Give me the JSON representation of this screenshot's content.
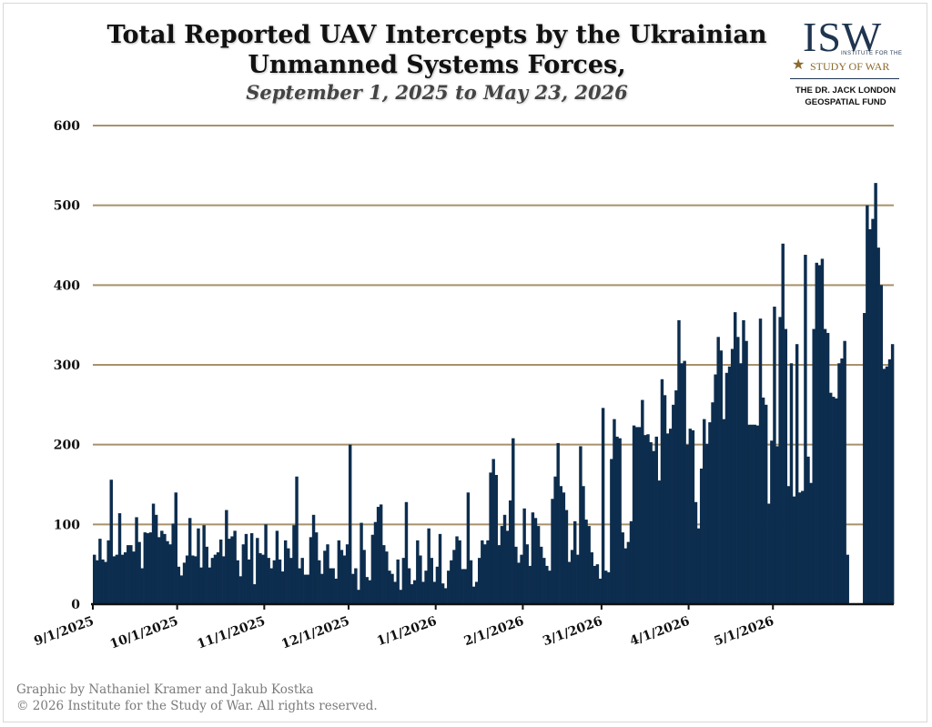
{
  "header": {
    "title_line1": "Total Reported UAV Intercepts by the Ukrainian",
    "title_line2": "Unmanned Systems Forces,",
    "subtitle": "September 1, 2025 to May 23, 2026"
  },
  "logo": {
    "letters": "ISW",
    "small_tag": "INSTITUTE FOR THE",
    "tag": "STUDY OF WAR",
    "fund_line1": "THE DR. JACK LONDON",
    "fund_line2": "GEOSPATIAL FUND"
  },
  "footer": {
    "credit_line1": "Graphic by Nathaniel Kramer and Jakub Kostka",
    "credit_line2": "© 2026 Institute for the Study of War. All rights reserved."
  },
  "colors": {
    "bar": "#0d2d4e",
    "grid": "#a8916b",
    "axis": "#111111"
  },
  "chart_data": {
    "type": "bar",
    "title": "Total Reported UAV Intercepts by the Ukrainian Unmanned Systems Forces,",
    "subtitle": "September 1, 2025 to May 23, 2026",
    "xlabel": "",
    "ylabel": "",
    "ylim": [
      0,
      600
    ],
    "yticks": [
      0,
      100,
      200,
      300,
      400,
      500,
      600
    ],
    "grid": true,
    "x_start": "9/1/2025",
    "x_end": "5/23/2026",
    "xtick_labels": [
      "9/1/2025",
      "10/1/2025",
      "11/1/2025",
      "12/1/2025",
      "1/1/2026",
      "2/1/2026",
      "3/1/2026",
      "4/1/2026",
      "5/1/2026"
    ],
    "xtick_days": [
      0,
      30,
      61,
      91,
      122,
      153,
      181,
      212,
      242
    ],
    "values": [
      62,
      55,
      82,
      56,
      53,
      80,
      156,
      60,
      62,
      114,
      62,
      65,
      74,
      74,
      66,
      109,
      78,
      45,
      90,
      89,
      90,
      126,
      112,
      84,
      92,
      88,
      79,
      75,
      101,
      140,
      47,
      36,
      52,
      61,
      108,
      61,
      60,
      95,
      46,
      99,
      72,
      46,
      58,
      62,
      65,
      81,
      60,
      118,
      82,
      85,
      92,
      55,
      35,
      75,
      88,
      56,
      89,
      25,
      83,
      64,
      62,
      100,
      58,
      45,
      55,
      92,
      56,
      41,
      80,
      70,
      58,
      99,
      160,
      45,
      58,
      37,
      37,
      84,
      112,
      90,
      55,
      38,
      67,
      75,
      45,
      45,
      32,
      80,
      68,
      61,
      75,
      200,
      38,
      45,
      18,
      102,
      68,
      34,
      30,
      87,
      103,
      122,
      125,
      74,
      66,
      42,
      38,
      28,
      56,
      18,
      58,
      128,
      45,
      25,
      30,
      80,
      61,
      28,
      42,
      95,
      58,
      28,
      47,
      88,
      26,
      20,
      42,
      55,
      68,
      85,
      80,
      44,
      44,
      140,
      55,
      22,
      28,
      58,
      80,
      75,
      80,
      165,
      182,
      162,
      74,
      98,
      112,
      92,
      130,
      208,
      72,
      52,
      62,
      120,
      75,
      48,
      115,
      108,
      98,
      72,
      58,
      48,
      42,
      132,
      160,
      202,
      148,
      140,
      118,
      53,
      68,
      104,
      62,
      198,
      148,
      106,
      98,
      65,
      48,
      50,
      32,
      246,
      42,
      40,
      182,
      232,
      210,
      208,
      90,
      70,
      78,
      104,
      224,
      222,
      222,
      256,
      212,
      213,
      203,
      192,
      210,
      155,
      282,
      262,
      214,
      220,
      250,
      268,
      356,
      302,
      305,
      200,
      220,
      218,
      128,
      95,
      170,
      232,
      201,
      228,
      253,
      288,
      335,
      318,
      232,
      290,
      298,
      320,
      366,
      335,
      302,
      356,
      330,
      225,
      225,
      225,
      224,
      358,
      259,
      250,
      126,
      205,
      373,
      198,
      360,
      452,
      345,
      148,
      302,
      135,
      326,
      140,
      142,
      438,
      185,
      152,
      345,
      428,
      425,
      433,
      345,
      340,
      265,
      260,
      258,
      302,
      308,
      330,
      62,
      0,
      0,
      0,
      0,
      0,
      365,
      500,
      470,
      483,
      528,
      447,
      400,
      295,
      298,
      307,
      326
    ]
  }
}
